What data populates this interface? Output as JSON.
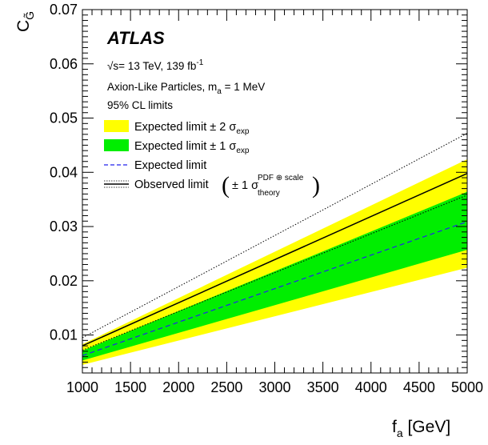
{
  "chart_data": {
    "type": "line",
    "title": "",
    "experiment": "ATLAS",
    "info": {
      "energy": "= 13 TeV, 139 fb",
      "lumi_exp": "-1",
      "model_prefix": "Axion-Like Particles, m",
      "model_sub": "a",
      "model_suffix": " = 1 MeV",
      "cl": "95% CL limits"
    },
    "xlabel": "f",
    "xlabel_sub": "a",
    "xlabel_unit": " [GeV]",
    "ylabel": "C",
    "ylabel_sub": "G̃",
    "xlim": [
      1000,
      5000
    ],
    "ylim": [
      0.003,
      0.07
    ],
    "x_ticks": [
      1000,
      1500,
      2000,
      2500,
      3000,
      3500,
      4000,
      4500,
      5000
    ],
    "y_ticks": [
      0.01,
      0.02,
      0.03,
      0.04,
      0.05,
      0.06,
      0.07
    ],
    "y_tick_labels": [
      "0.01",
      "0.02",
      "0.03",
      "0.04",
      "0.05",
      "0.06",
      "0.07"
    ],
    "x": [
      1000,
      5000
    ],
    "series": [
      {
        "key": "band2",
        "name": "Expected limit ± 2 σ",
        "name_sub": "exp",
        "lower": [
          0.0045,
          0.0224
        ],
        "upper": [
          0.0083,
          0.0424
        ],
        "color": "#ffff00"
      },
      {
        "key": "band1",
        "name": "Expected limit ± 1 σ",
        "name_sub": "exp",
        "lower": [
          0.0053,
          0.0257
        ],
        "upper": [
          0.0071,
          0.0364
        ],
        "color": "#00ee00"
      },
      {
        "key": "expected",
        "name": "Expected limit",
        "values": [
          0.0062,
          0.0309
        ],
        "color": "#2222ee",
        "style": "dashed"
      },
      {
        "key": "observed",
        "name": "Observed limit",
        "values": [
          0.008,
          0.0398
        ],
        "color": "#000000",
        "style": "solid"
      },
      {
        "key": "obs_up",
        "values": [
          0.0095,
          0.0472
        ],
        "color": "#000000",
        "style": "dotted"
      },
      {
        "key": "obs_down",
        "values": [
          0.0072,
          0.0358
        ],
        "color": "#000000",
        "style": "dotted"
      }
    ],
    "observed_theory": {
      "prefix": "± 1 σ",
      "sup": "PDF ⊕ scale",
      "sub": "theory"
    },
    "grid": false,
    "legend_position": "top-left"
  }
}
